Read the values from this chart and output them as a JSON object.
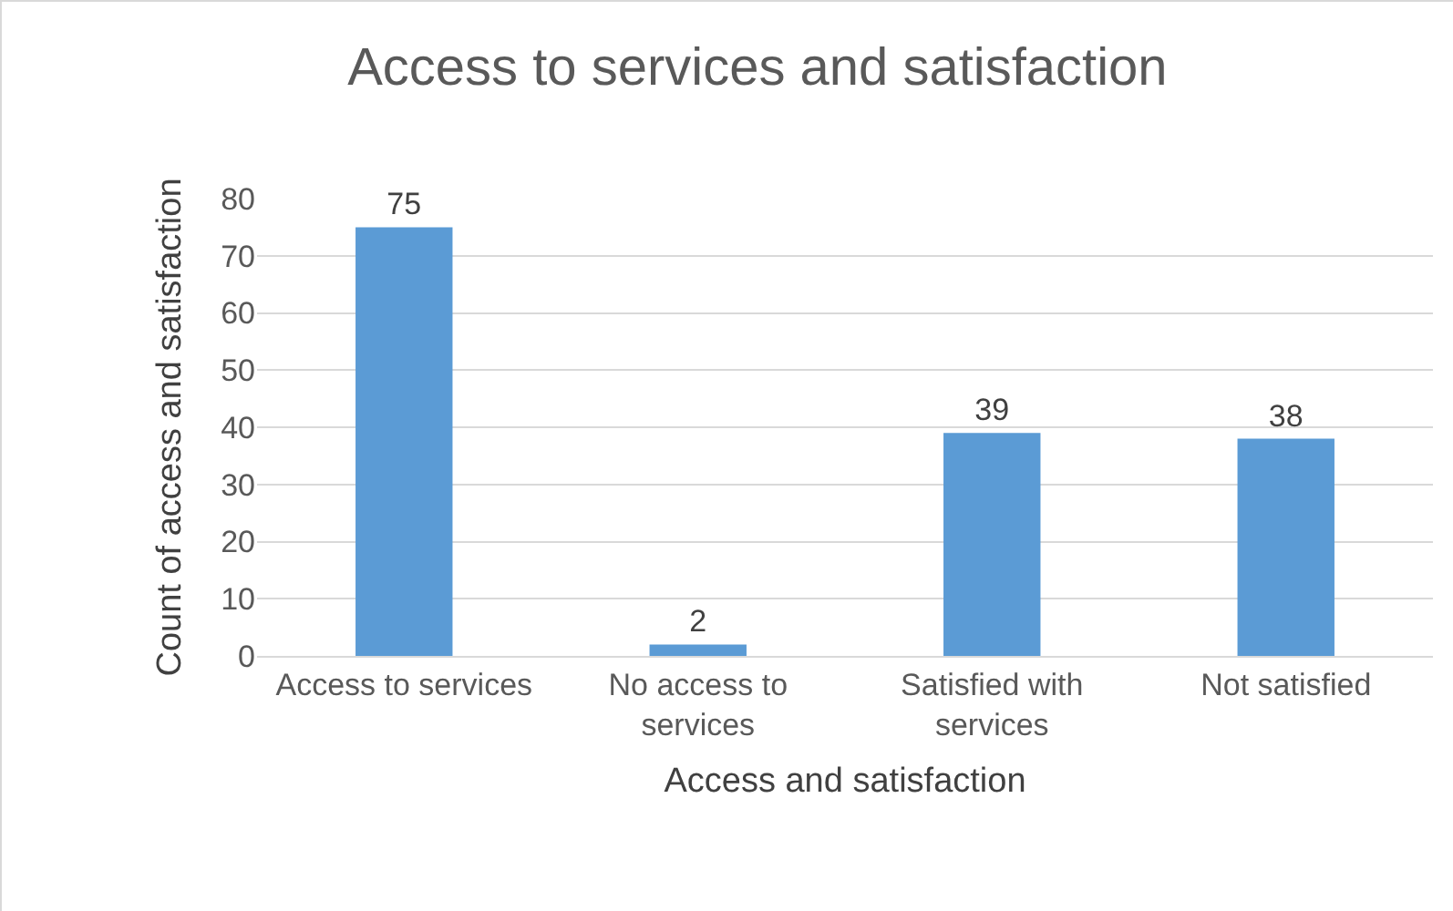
{
  "chart_data": {
    "type": "bar",
    "title": "Access to services and satisfaction",
    "xlabel": "Access and satisfaction",
    "ylabel": "Count of access and satisfaction",
    "categories": [
      "Access to services",
      "No access to services",
      "Satisfied with services",
      "Not satisfied"
    ],
    "values": [
      75,
      2,
      39,
      38
    ],
    "color": "#5b9bd5",
    "ylim": [
      0,
      80
    ],
    "yticks": [
      0,
      10,
      20,
      30,
      40,
      50,
      60,
      70,
      80
    ],
    "grid": "y",
    "data_labels": true
  }
}
